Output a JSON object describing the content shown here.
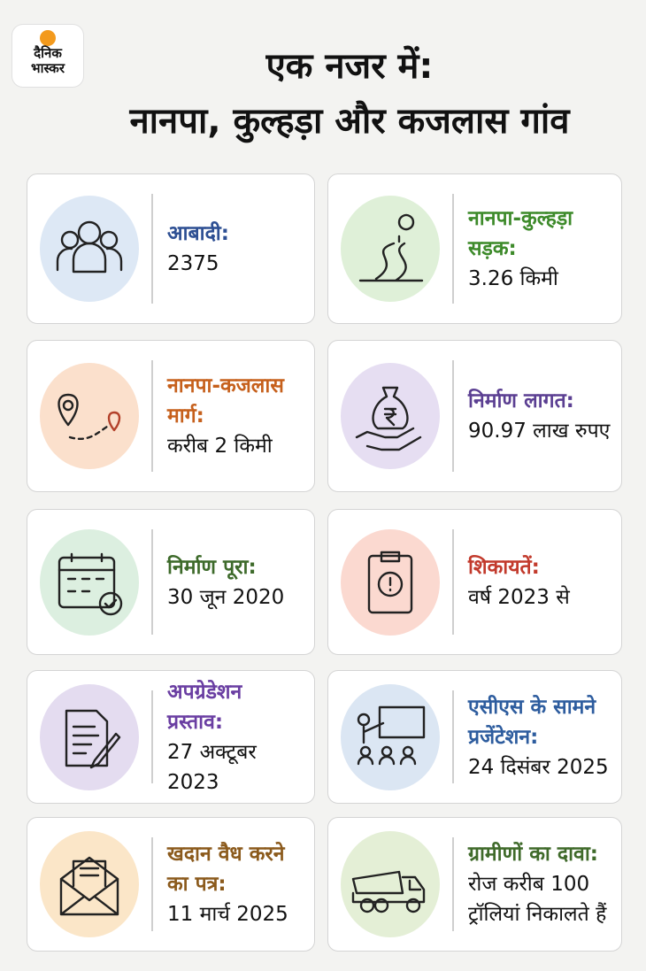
{
  "header": {
    "logo": [
      "दैनिक",
      "भास्कर"
    ],
    "title": [
      "एक नजर में:",
      "नानपा, कुल्हड़ा और कजलास गांव"
    ]
  },
  "cards": [
    {
      "label": "आबादी:",
      "value": "2375"
    },
    {
      "label": "नानपा-कुल्हड़ा सड़क:",
      "value": "3.26 किमी"
    },
    {
      "label": "नानपा-कजलास मार्ग:",
      "value": "करीब 2 किमी"
    },
    {
      "label": "निर्माण लागत:",
      "value": "90.97 लाख रुपए"
    },
    {
      "label": "निर्माण पूरा:",
      "value": "30 जून 2020"
    },
    {
      "label": "शिकायतें:",
      "value": "वर्ष 2023 से"
    },
    {
      "label": "अपग्रेडेशन प्रस्ताव:",
      "value": "27 अक्टूबर 2023"
    },
    {
      "label": "एसीएस के सामने प्रजेंटेशन:",
      "value": "24 दिसंबर 2025"
    },
    {
      "label": "खदान वैध करने का पत्र:",
      "value": "11 मार्च 2025"
    },
    {
      "label": "ग्रामीणों का दावा:",
      "value": "रोज करीब 100 ट्रॉलियां निकालते हैं"
    }
  ]
}
